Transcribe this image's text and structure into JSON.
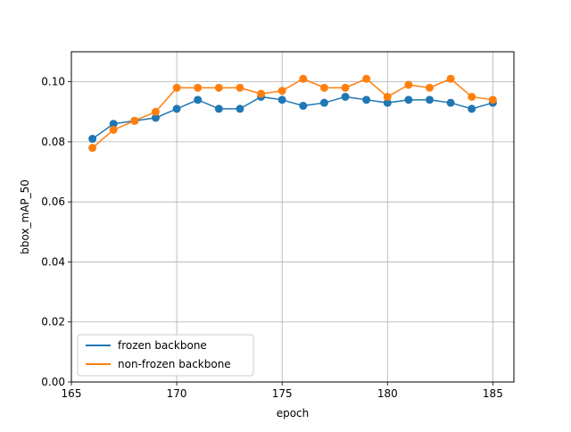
{
  "chart_data": {
    "type": "line",
    "title": "",
    "xlabel": "epoch",
    "ylabel": "bbox_mAP_50",
    "xlim": [
      165,
      186
    ],
    "ylim": [
      0,
      0.11
    ],
    "xticks": [
      165,
      170,
      175,
      180,
      185
    ],
    "yticks": [
      0.0,
      0.02,
      0.04,
      0.06,
      0.08,
      0.1
    ],
    "xtick_labels": [
      "165",
      "170",
      "175",
      "180",
      "185"
    ],
    "ytick_labels": [
      "0.00",
      "0.02",
      "0.04",
      "0.06",
      "0.08",
      "0.10"
    ],
    "grid": true,
    "legend_position": "lower-left",
    "x": [
      166,
      167,
      168,
      169,
      170,
      171,
      172,
      173,
      174,
      175,
      176,
      177,
      178,
      179,
      180,
      181,
      182,
      183,
      184,
      185
    ],
    "series": [
      {
        "name": "frozen backbone",
        "color": "#1f77b4",
        "values": [
          0.081,
          0.086,
          0.087,
          0.088,
          0.091,
          0.094,
          0.091,
          0.091,
          0.095,
          0.094,
          0.092,
          0.093,
          0.095,
          0.094,
          0.093,
          0.094,
          0.094,
          0.093,
          0.091,
          0.093
        ]
      },
      {
        "name": "non-frozen backbone",
        "color": "#ff7f0e",
        "values": [
          0.078,
          0.084,
          0.087,
          0.09,
          0.098,
          0.098,
          0.098,
          0.098,
          0.096,
          0.097,
          0.101,
          0.098,
          0.098,
          0.101,
          0.095,
          0.099,
          0.098,
          0.101,
          0.095,
          0.094
        ]
      }
    ]
  }
}
